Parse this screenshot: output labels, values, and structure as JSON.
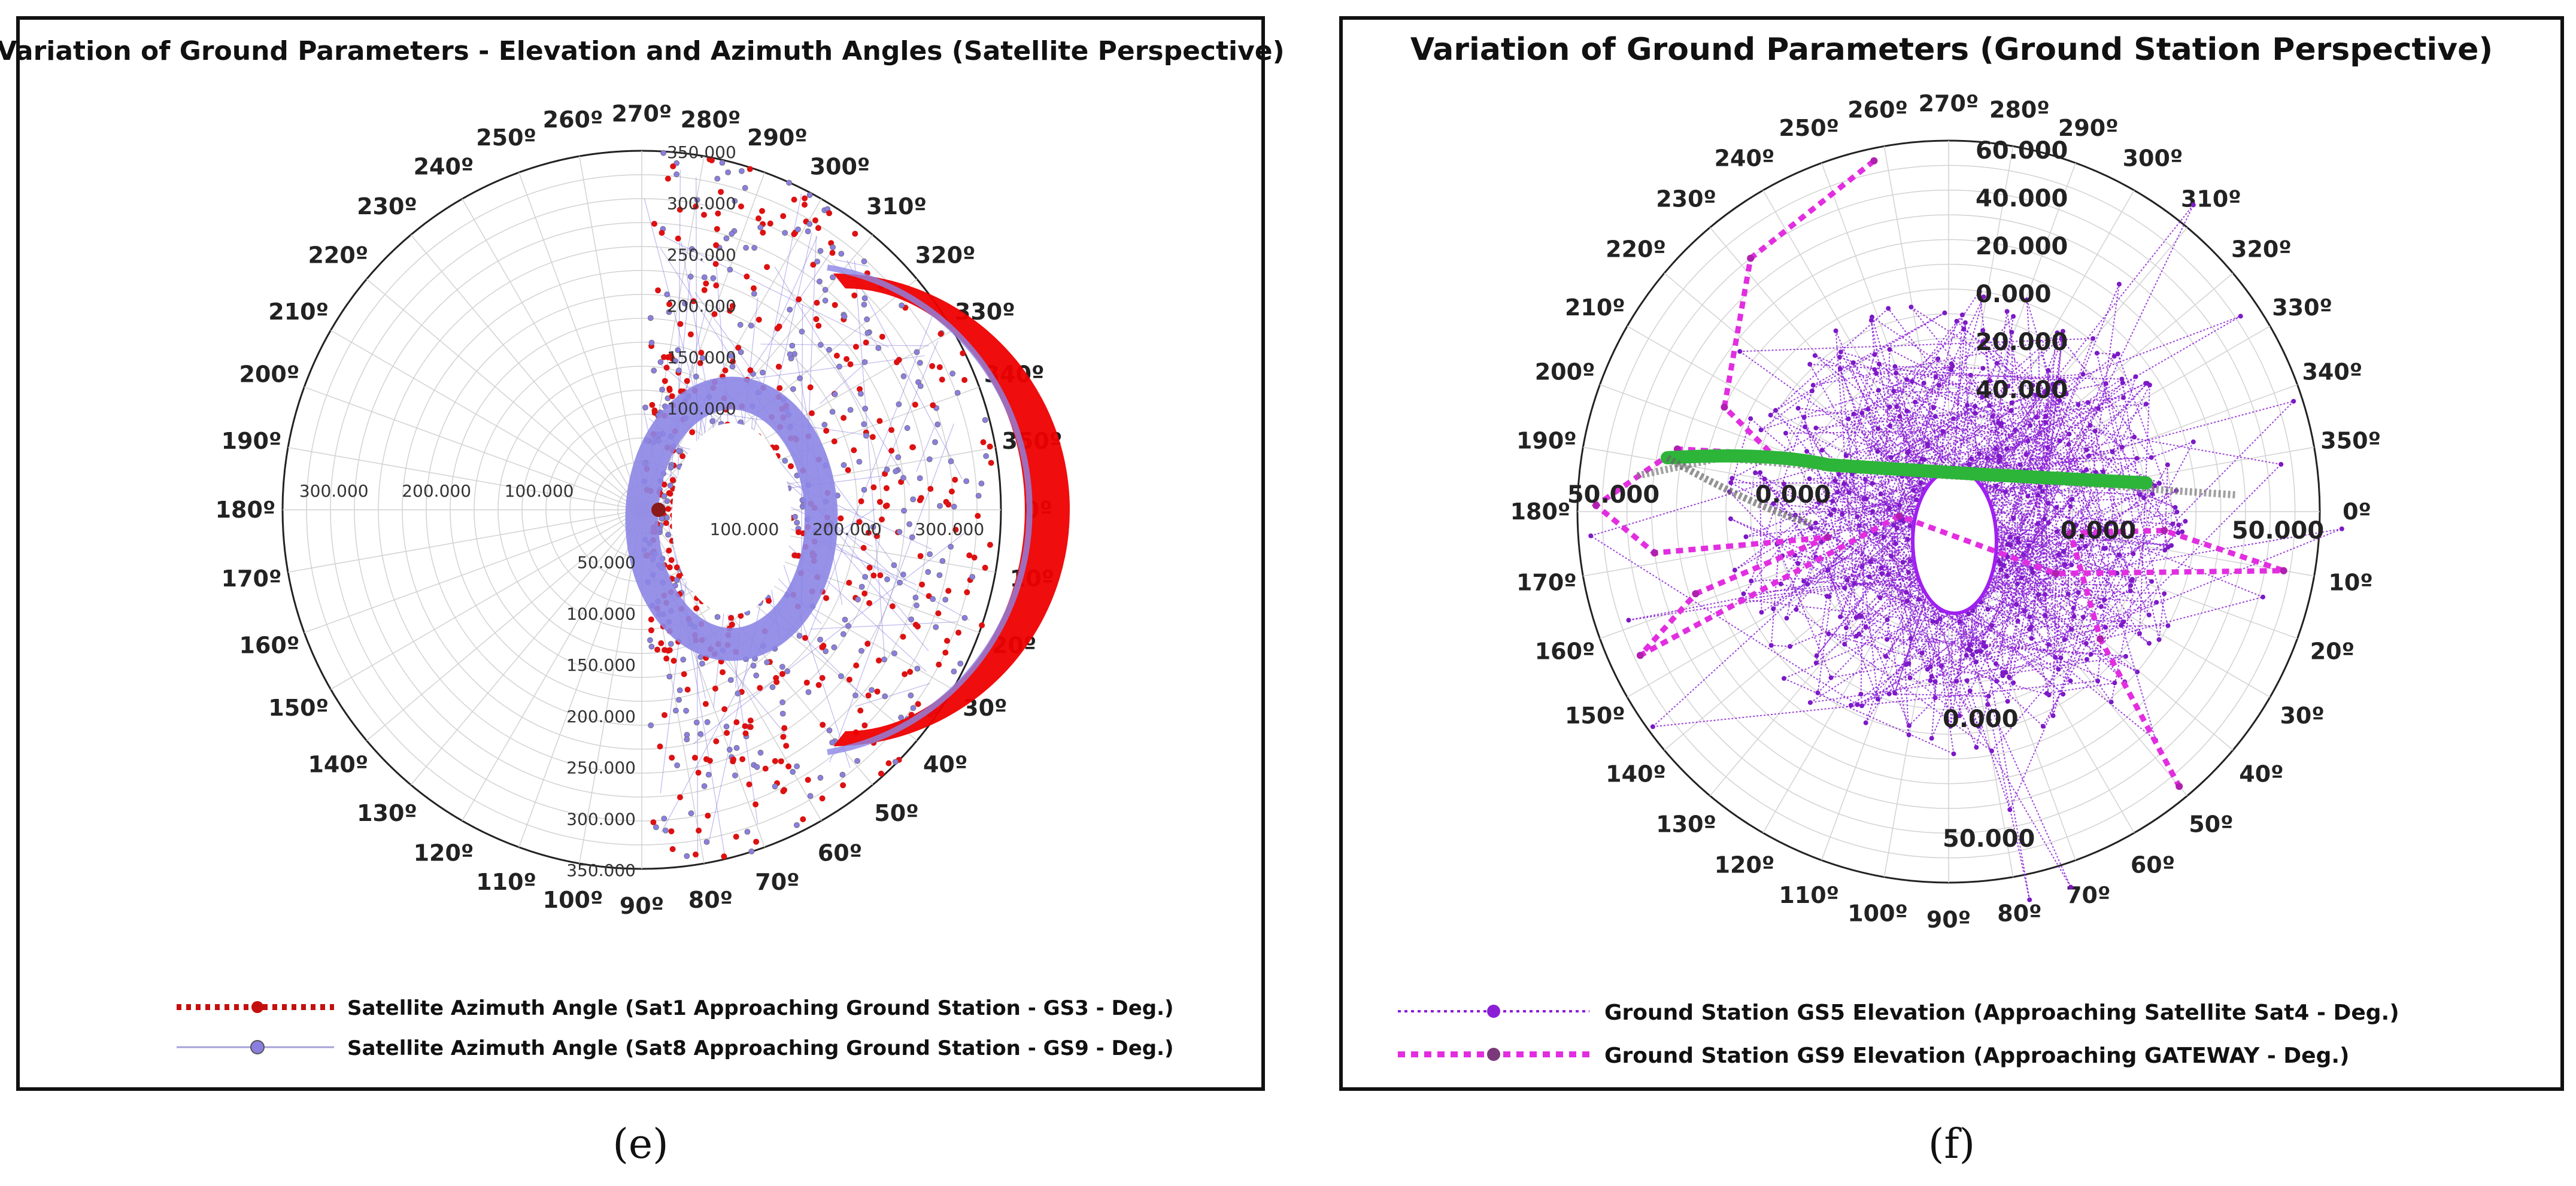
{
  "panels": [
    {
      "id": "e",
      "sublabel": "(e)",
      "title": "Variation of Ground Parameters - Elevation and Azimuth Angles (Satellite Perspective)",
      "chart_data": {
        "type": "polar",
        "angle_labels": [
          "0º",
          "10º",
          "20º",
          "30º",
          "40º",
          "50º",
          "60º",
          "70º",
          "80º",
          "90º",
          "100º",
          "110º",
          "120º",
          "130º",
          "140º",
          "150º",
          "160º",
          "170º",
          "180º",
          "190º",
          "200º",
          "210º",
          "220º",
          "230º",
          "240º",
          "250º",
          "260º",
          "270º",
          "280º",
          "290º",
          "300º",
          "310º",
          "320º",
          "330º",
          "340º",
          "350º"
        ],
        "radial_axis": {
          "range": [
            0,
            350
          ],
          "direction": "outward"
        },
        "radial_tick_labels": {
          "north": [
            "350.000",
            "300.000",
            "250.000",
            "200.000",
            "150.000",
            "100.000"
          ],
          "south": [
            "50.000",
            "100.000",
            "150.000",
            "200.000",
            "250.000",
            "300.000",
            "350.000"
          ],
          "west": [
            "300.000",
            "200.000",
            "100.000"
          ],
          "east": [
            "100.000",
            "200.000",
            "300.000"
          ]
        },
        "series": [
          {
            "name": "Satellite Azimuth Angle (Sat1 Approaching Ground Station - GS3 - Deg.)",
            "color": "#dd1111",
            "style": "dotted-thick",
            "marker": "circle",
            "angle_range_deg": [
              -90,
              90
            ]
          },
          {
            "name": "Satellite Azimuth Angle (Sat8 Approaching Ground Station - GS9 - Deg.)",
            "color": "#8a7fe0",
            "style": "thin",
            "marker": "circle",
            "angle_range_deg": [
              -90,
              90
            ]
          }
        ]
      }
    },
    {
      "id": "f",
      "sublabel": "(f)",
      "title": "Variation of Ground Parameters (Ground Station Perspective)",
      "chart_data": {
        "type": "polar",
        "angle_labels": [
          "0º",
          "10º",
          "20º",
          "30º",
          "40º",
          "50º",
          "60º",
          "70º",
          "80º",
          "90º",
          "100º",
          "110º",
          "120º",
          "130º",
          "140º",
          "150º",
          "160º",
          "170º",
          "180º",
          "190º",
          "200º",
          "210º",
          "220º",
          "230º",
          "240º",
          "250º",
          "260º",
          "270º",
          "280º",
          "290º",
          "300º",
          "310º",
          "320º",
          "330º",
          "340º",
          "350º"
        ],
        "radial_axis": {
          "range": [
            -60,
            60
          ],
          "direction": "inward"
        },
        "radial_tick_labels": {
          "north": [
            "60.000",
            "40.000",
            "20.000",
            "0.000",
            "20.000",
            "40.000"
          ],
          "south": [
            "0.000",
            "50.000"
          ],
          "west": [
            "50.000",
            "0.000"
          ],
          "east": [
            "0.000",
            "50.000"
          ]
        },
        "series": [
          {
            "name": "Ground Station GS5 Elevation (Approaching Satellite Sat4 - Deg.)",
            "color": "#8a1fd6",
            "style": "dotted-thin",
            "marker": "circle"
          },
          {
            "name": "Ground Station GS9 Elevation (Approaching GATEWAY - Deg.)",
            "color": "#e22ee0",
            "style": "dotted-thick",
            "marker": "circle"
          }
        ],
        "gs9_points": [
          {
            "angle": 258,
            "r": 58
          },
          {
            "angle": 232,
            "r": 52
          },
          {
            "angle": 205,
            "r": 40
          },
          {
            "angle": 198,
            "r": 30
          },
          {
            "angle": 193,
            "r": 45
          },
          {
            "angle": 181,
            "r": 57
          },
          {
            "angle": 172,
            "r": 48
          },
          {
            "angle": 168,
            "r": 20
          },
          {
            "angle": 162,
            "r": 43
          },
          {
            "angle": 155,
            "r": 55
          },
          {
            "angle": 175,
            "r": 8
          },
          {
            "angle": 30,
            "r": 20
          },
          {
            "angle": 10,
            "r": 55
          },
          {
            "angle": 5,
            "r": 35
          },
          {
            "angle": 10,
            "r": 20
          },
          {
            "angle": 40,
            "r": 32
          },
          {
            "angle": 50,
            "r": 58
          }
        ]
      }
    }
  ]
}
